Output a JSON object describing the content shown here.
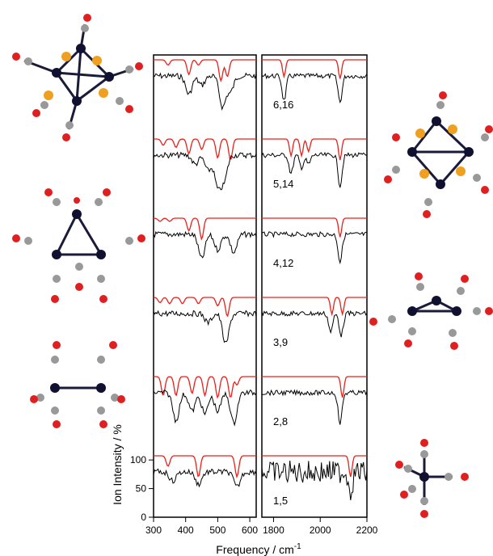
{
  "chart_data": {
    "type": "line",
    "ylabel": "Ion Intensity / %",
    "xlabel": "Frequency / cm",
    "xlabel_superscript": "-1",
    "panels": [
      {
        "name": "left",
        "xlim": [
          300,
          620
        ],
        "ticks": [
          "300",
          "400",
          "500",
          "600"
        ]
      },
      {
        "name": "right",
        "xlim": [
          1750,
          2200
        ],
        "ticks": [
          "1800",
          "2000",
          "2200"
        ]
      }
    ],
    "y_ticks": [
      "0",
      "50",
      "100"
    ],
    "ylim": [
      0,
      120
    ],
    "series_colors": {
      "experiment": "#000000",
      "calculation": "#e8211b"
    },
    "traces": [
      {
        "label": "6,16",
        "left_calc_dips": [
          [
            345,
            0.25
          ],
          [
            410,
            0.7
          ],
          [
            440,
            0.25
          ],
          [
            510,
            1.0
          ],
          [
            530,
            0.8
          ]
        ],
        "left_exp_dips": [
          [
            410,
            0.6
          ],
          [
            450,
            0.3
          ],
          [
            515,
            1.0
          ],
          [
            540,
            0.5
          ]
        ],
        "right_calc_dips": [
          [
            1845,
            0.8
          ],
          [
            2085,
            0.9
          ]
        ],
        "right_exp_dips": [
          [
            1845,
            0.8
          ],
          [
            2085,
            0.85
          ]
        ]
      },
      {
        "label": "5,14",
        "left_calc_dips": [
          [
            330,
            0.3
          ],
          [
            370,
            0.4
          ],
          [
            410,
            0.7
          ],
          [
            450,
            0.5
          ],
          [
            500,
            0.9
          ],
          [
            540,
            1.0
          ]
        ],
        "left_exp_dips": [
          [
            430,
            0.3
          ],
          [
            470,
            0.5
          ],
          [
            500,
            1.0
          ],
          [
            520,
            0.8
          ]
        ],
        "right_calc_dips": [
          [
            1875,
            0.8
          ],
          [
            1920,
            0.8
          ],
          [
            1950,
            0.6
          ],
          [
            2085,
            1.0
          ]
        ],
        "right_exp_dips": [
          [
            1875,
            0.6
          ],
          [
            1920,
            0.4
          ],
          [
            1950,
            0.3
          ],
          [
            2085,
            1.0
          ]
        ]
      },
      {
        "label": "4,12",
        "left_calc_dips": [
          [
            320,
            0.15
          ],
          [
            350,
            0.15
          ],
          [
            410,
            0.6
          ],
          [
            450,
            1.0
          ]
        ],
        "left_exp_dips": [
          [
            450,
            0.8
          ],
          [
            500,
            0.5
          ],
          [
            550,
            0.6
          ]
        ],
        "right_calc_dips": [
          [
            2085,
            0.9
          ]
        ],
        "right_exp_dips": [
          [
            2085,
            0.9
          ]
        ]
      },
      {
        "label": "3,9",
        "left_calc_dips": [
          [
            320,
            0.25
          ],
          [
            350,
            0.3
          ],
          [
            390,
            0.3
          ],
          [
            440,
            0.3
          ],
          [
            500,
            0.4
          ],
          [
            530,
            0.9
          ]
        ],
        "left_exp_dips": [
          [
            525,
            1.0
          ],
          [
            470,
            0.3
          ]
        ],
        "right_calc_dips": [
          [
            2050,
            0.8
          ],
          [
            2095,
            0.8
          ]
        ],
        "right_exp_dips": [
          [
            2045,
            0.6
          ],
          [
            2090,
            0.7
          ]
        ]
      },
      {
        "label": "2,8",
        "left_calc_dips": [
          [
            330,
            0.9
          ],
          [
            370,
            0.9
          ],
          [
            420,
            0.8
          ],
          [
            460,
            0.9
          ],
          [
            500,
            1.0
          ],
          [
            540,
            1.0
          ],
          [
            560,
            0.4
          ]
        ],
        "left_exp_dips": [
          [
            370,
            0.9
          ],
          [
            420,
            0.6
          ],
          [
            460,
            0.7
          ],
          [
            500,
            0.6
          ],
          [
            550,
            1.0
          ]
        ],
        "right_calc_dips": [
          [
            2095,
            1.0
          ]
        ],
        "right_exp_dips": [
          [
            2085,
            1.0
          ]
        ]
      },
      {
        "label": "1,5",
        "left_calc_dips": [
          [
            345,
            0.5
          ],
          [
            440,
            1.0
          ],
          [
            560,
            1.0
          ]
        ],
        "left_exp_dips": [
          [
            360,
            0.3
          ],
          [
            440,
            0.4
          ],
          [
            560,
            0.5
          ]
        ],
        "right_calc_dips": [
          [
            2130,
            1.0
          ]
        ],
        "right_exp_dips": [
          [
            2130,
            0.6
          ]
        ]
      }
    ]
  }
}
